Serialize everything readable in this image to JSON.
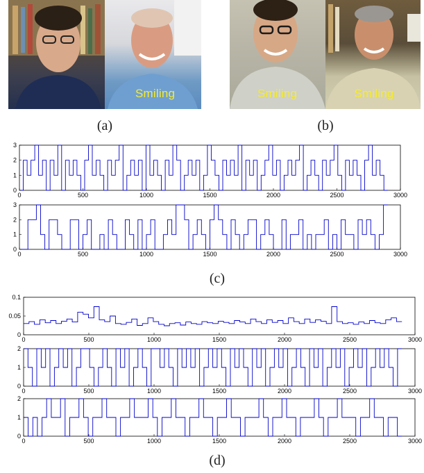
{
  "panels": {
    "a": {
      "caption": "(a)",
      "label_right": "Smiling"
    },
    "b": {
      "caption": "(b)",
      "label_left": "Smiling",
      "label_right": "Smiling"
    }
  },
  "captions": {
    "c": "(c)",
    "d": "(d)"
  },
  "colors": {
    "series": "#0000cc",
    "axes": "#000000",
    "label": "#f6ec2a"
  },
  "chart_data": [
    {
      "type": "line",
      "panel": "c",
      "series": [
        {
          "values": [
            0,
            2,
            1,
            2,
            3,
            1,
            2,
            0,
            2,
            1,
            3,
            0,
            2,
            1,
            2,
            1,
            0,
            2,
            3,
            1,
            2,
            1,
            0,
            2,
            1,
            2,
            3,
            0,
            1,
            2,
            1,
            2,
            0,
            3,
            1,
            2,
            1,
            0,
            2,
            1,
            3,
            2,
            0,
            1,
            2,
            1,
            2,
            0,
            1,
            3,
            2,
            1,
            0,
            2,
            1,
            2,
            1,
            3,
            0,
            2,
            1,
            2,
            0,
            1,
            2,
            3,
            1,
            2,
            0,
            1,
            2,
            1,
            2,
            3,
            0,
            1,
            2,
            1,
            0,
            2,
            1,
            2,
            3,
            1,
            0,
            2,
            1,
            2,
            1,
            0,
            2,
            3,
            1,
            2,
            1,
            0
          ]
        }
      ],
      "xlim": [
        0,
        3000
      ],
      "ylim": [
        0,
        3
      ],
      "xticks": [
        0,
        500,
        1000,
        1500,
        2000,
        2500,
        3000
      ],
      "yticks": [
        0,
        1,
        2,
        3
      ]
    },
    {
      "type": "line",
      "panel": "c",
      "series": [
        {
          "values": [
            0,
            0,
            2,
            2,
            3,
            1,
            0,
            2,
            2,
            1,
            0,
            0,
            2,
            2,
            0,
            1,
            2,
            0,
            0,
            1,
            0,
            2,
            1,
            0,
            0,
            2,
            1,
            0,
            2,
            0,
            1,
            2,
            0,
            0,
            1,
            2,
            1,
            3,
            3,
            2,
            0,
            1,
            2,
            1,
            0,
            2,
            3,
            2,
            1,
            0,
            2,
            1,
            0,
            1,
            2,
            2,
            0,
            1,
            2,
            1,
            0,
            0,
            2,
            0,
            1,
            1,
            2,
            0,
            1,
            0,
            1,
            1,
            2,
            0,
            1,
            0,
            2,
            1,
            1,
            0,
            2,
            1,
            2,
            1,
            0,
            1,
            3
          ]
        }
      ],
      "xlim": [
        0,
        3000
      ],
      "ylim": [
        0,
        3
      ],
      "xticks": [
        0,
        500,
        1000,
        1500,
        2000,
        2500,
        3000
      ],
      "yticks": [
        0,
        1,
        2,
        3
      ]
    },
    {
      "type": "line",
      "panel": "d",
      "series": [
        {
          "values": [
            0.03,
            0.035,
            0.028,
            0.04,
            0.032,
            0.038,
            0.03,
            0.036,
            0.042,
            0.034,
            0.06,
            0.055,
            0.045,
            0.075,
            0.04,
            0.035,
            0.05,
            0.03,
            0.028,
            0.033,
            0.042,
            0.025,
            0.03,
            0.045,
            0.035,
            0.028,
            0.024,
            0.03,
            0.032,
            0.026,
            0.034,
            0.03,
            0.028,
            0.035,
            0.032,
            0.03,
            0.036,
            0.033,
            0.03,
            0.038,
            0.034,
            0.03,
            0.042,
            0.035,
            0.03,
            0.04,
            0.033,
            0.038,
            0.03,
            0.045,
            0.035,
            0.03,
            0.042,
            0.033,
            0.04,
            0.036,
            0.03,
            0.075,
            0.035,
            0.03,
            0.032,
            0.028,
            0.034,
            0.03,
            0.038,
            0.032,
            0.03,
            0.04,
            0.045,
            0.035
          ]
        }
      ],
      "xlim": [
        0,
        3000
      ],
      "ylim": [
        0,
        0.1
      ],
      "xticks": [
        0,
        500,
        1000,
        1500,
        2000,
        2500,
        3000
      ],
      "yticks": [
        0,
        0.05,
        0.1
      ]
    },
    {
      "type": "line",
      "panel": "d",
      "series": [
        {
          "values": [
            2,
            1,
            0,
            2,
            1,
            2,
            0,
            1,
            2,
            1,
            2,
            0,
            1,
            2,
            2,
            1,
            0,
            1,
            2,
            1,
            0,
            2,
            1,
            2,
            0,
            1,
            2,
            1,
            0,
            2,
            2,
            1,
            2,
            1,
            0,
            2,
            1,
            2,
            1,
            2,
            0,
            1,
            2,
            1,
            2,
            1,
            0,
            2,
            1,
            2,
            1,
            0,
            2,
            1,
            2,
            0,
            1,
            2,
            1,
            2,
            0,
            1,
            2,
            1,
            0,
            2,
            1,
            2,
            0,
            1,
            2,
            1,
            2,
            0,
            1,
            2,
            1,
            2,
            0,
            1,
            2,
            1,
            2,
            1,
            0,
            2
          ]
        }
      ],
      "xlim": [
        0,
        3000
      ],
      "ylim": [
        0,
        2
      ],
      "xticks": [
        0,
        500,
        1000,
        1500,
        2000,
        2500,
        3000
      ],
      "yticks": [
        0,
        1,
        2
      ]
    },
    {
      "type": "line",
      "panel": "d",
      "series": [
        {
          "values": [
            1,
            0,
            1,
            0,
            1,
            2,
            1,
            1,
            2,
            0,
            1,
            1,
            2,
            1,
            0,
            1,
            1,
            2,
            1,
            1,
            0,
            1,
            1,
            2,
            1,
            1,
            1,
            2,
            1,
            0,
            1,
            1,
            2,
            1,
            1,
            0,
            1,
            1,
            2,
            1,
            1,
            0,
            1,
            1,
            2,
            1,
            1,
            0,
            1,
            1,
            1,
            2,
            1,
            0,
            1,
            1,
            2,
            1,
            1,
            0,
            1,
            1,
            1,
            2,
            1,
            0,
            1,
            1,
            2,
            1,
            1,
            1,
            0,
            1,
            1,
            2,
            1,
            1,
            0,
            1,
            1,
            0
          ]
        }
      ],
      "xlim": [
        0,
        3000
      ],
      "ylim": [
        0,
        2
      ],
      "xticks": [
        0,
        500,
        1000,
        1500,
        2000,
        2500,
        3000
      ],
      "yticks": [
        0,
        1,
        2
      ]
    }
  ]
}
